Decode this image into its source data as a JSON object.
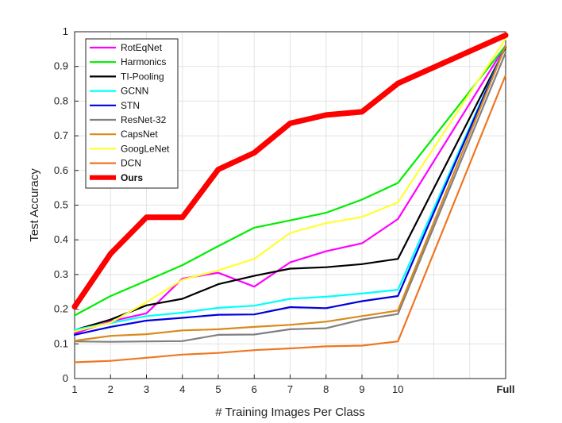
{
  "chart_data": {
    "type": "line",
    "xlabel": "# Training Images Per Class",
    "ylabel": "Test Accuracy",
    "x_tick_labels": [
      "1",
      "2",
      "3",
      "4",
      "5",
      "6",
      "7",
      "8",
      "9",
      "10",
      "Full"
    ],
    "y_tick_labels": [
      "0",
      "0.1",
      "0.2",
      "0.3",
      "0.4",
      "0.5",
      "0.6",
      "0.7",
      "0.8",
      "0.9",
      "1"
    ],
    "ylim": [
      0,
      1
    ],
    "grid": true,
    "legend_position": "top-left",
    "series": [
      {
        "name": "RotEqNet",
        "color": "#ff00ff",
        "values": [
          0.13,
          0.165,
          0.188,
          0.288,
          0.305,
          0.265,
          0.335,
          0.367,
          0.39,
          0.46,
          0.96
        ]
      },
      {
        "name": "Harmonics",
        "color": "#00ee00",
        "values": [
          0.182,
          0.238,
          0.282,
          0.327,
          0.382,
          0.435,
          0.456,
          0.478,
          0.516,
          0.564,
          0.96
        ]
      },
      {
        "name": "TI-Pooling",
        "color": "#000000",
        "values": [
          0.14,
          0.17,
          0.211,
          0.23,
          0.272,
          0.296,
          0.317,
          0.321,
          0.33,
          0.345,
          0.955
        ]
      },
      {
        "name": "GCNN",
        "color": "#00ffff",
        "values": [
          0.141,
          0.16,
          0.18,
          0.19,
          0.204,
          0.21,
          0.23,
          0.236,
          0.245,
          0.256,
          0.96
        ]
      },
      {
        "name": "STN",
        "color": "#0000dd",
        "values": [
          0.126,
          0.149,
          0.167,
          0.175,
          0.184,
          0.185,
          0.206,
          0.203,
          0.223,
          0.238,
          0.96
        ]
      },
      {
        "name": "ResNet-32",
        "color": "#808080",
        "values": [
          0.107,
          0.106,
          0.107,
          0.108,
          0.126,
          0.127,
          0.142,
          0.145,
          0.17,
          0.186,
          0.94
        ]
      },
      {
        "name": "CapsNet",
        "color": "#d98a1b",
        "values": [
          0.109,
          0.123,
          0.128,
          0.139,
          0.142,
          0.149,
          0.155,
          0.164,
          0.18,
          0.196,
          0.96
        ]
      },
      {
        "name": "GoogLeNet",
        "color": "#ffff33",
        "values": [
          0.136,
          0.161,
          0.22,
          0.285,
          0.312,
          0.345,
          0.42,
          0.448,
          0.466,
          0.508,
          0.98
        ]
      },
      {
        "name": "DCN",
        "color": "#ee7722",
        "values": [
          0.047,
          0.051,
          0.06,
          0.069,
          0.074,
          0.082,
          0.087,
          0.093,
          0.095,
          0.107,
          0.875
        ]
      },
      {
        "name": "Ours",
        "color": "#ff0000",
        "bold": true,
        "values": [
          0.207,
          0.36,
          0.465,
          0.465,
          0.603,
          0.651,
          0.736,
          0.76,
          0.769,
          0.851,
          0.99
        ]
      }
    ]
  }
}
